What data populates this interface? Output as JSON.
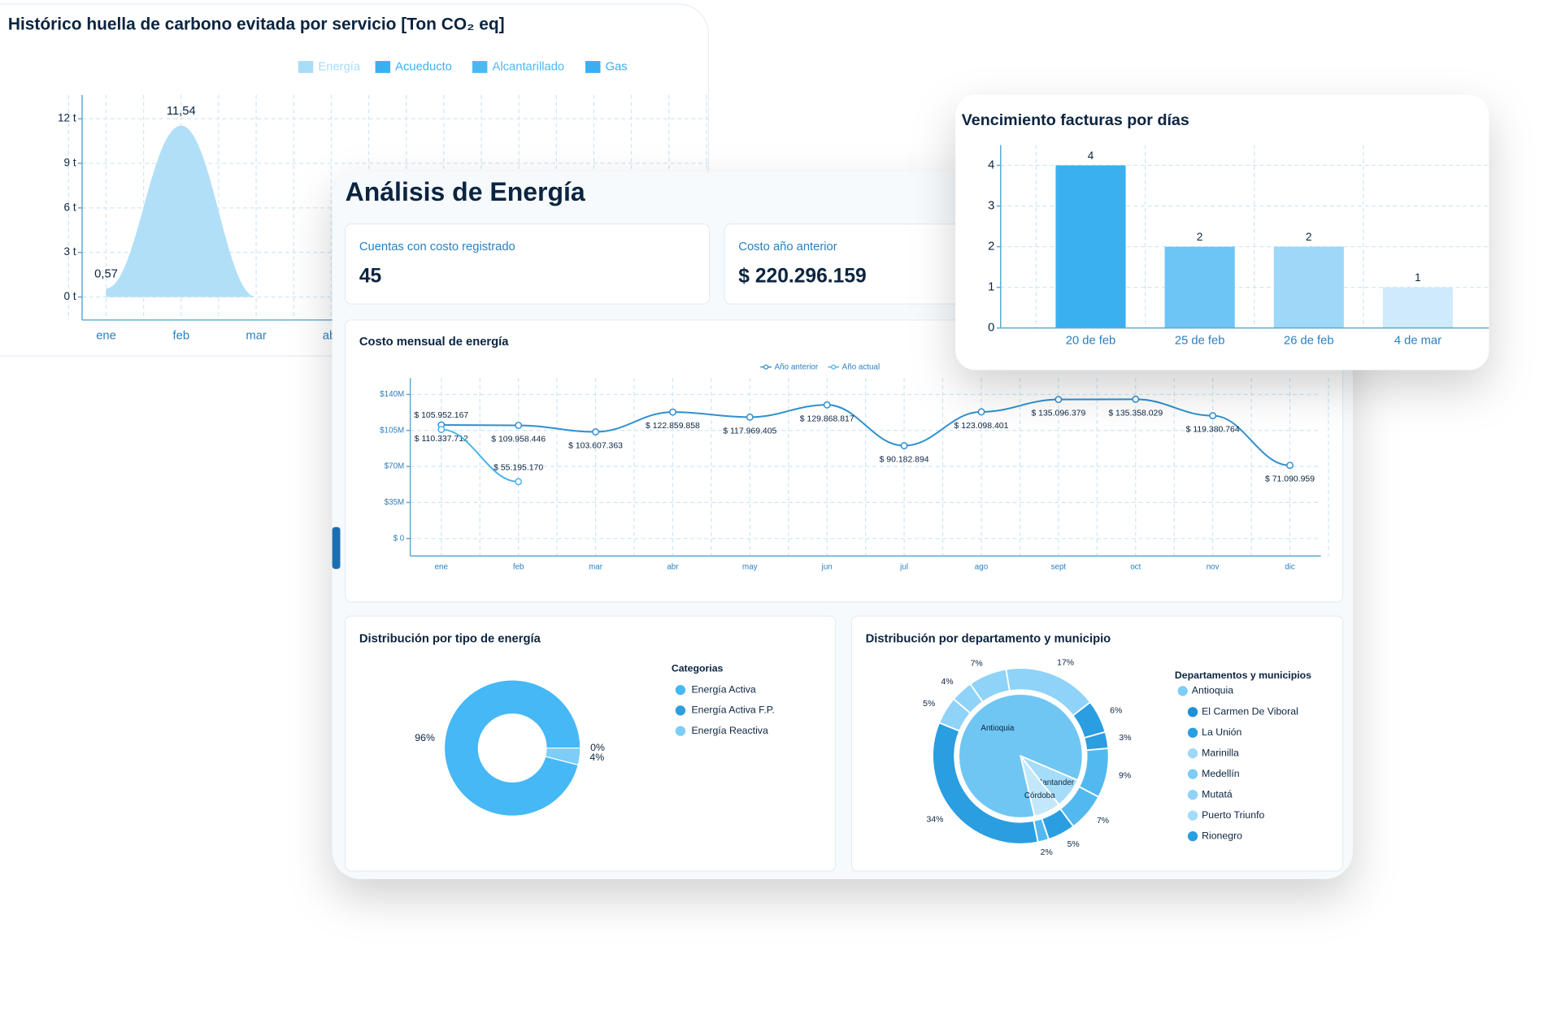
{
  "title": "Análisis de Energía",
  "cards": [
    {
      "label": "Cuentas con costo registrado",
      "value": 45
    },
    {
      "label": "Costo año anterior",
      "value": "$ 220.296.159"
    }
  ],
  "chart_data": [
    {
      "type": "area",
      "title": "Histórico huella de carbono evitada por servicio [Ton CO₂ eq]",
      "categories": [
        "ene",
        "feb",
        "mar",
        "abr"
      ],
      "series": [
        {
          "name": "Energía",
          "color": "#a9dcf7",
          "values": [
            0.57,
            11.54,
            0,
            0
          ],
          "value_labels": [
            "0,57",
            "11,54",
            null,
            null
          ]
        },
        {
          "name": "Acueducto",
          "color": "#3bb0f0"
        },
        {
          "name": "Alcantarillado",
          "color": "#4cb8f2"
        },
        {
          "name": "Gas",
          "color": "#3aaef0"
        }
      ],
      "ylim": [
        -1.55,
        13.6
      ],
      "yticks": [
        {
          "value": 0,
          "label": "0 t"
        },
        {
          "value": 3,
          "label": "3 t"
        },
        {
          "value": 6,
          "label": "6 t"
        },
        {
          "value": 9,
          "label": "9 t"
        },
        {
          "value": 12,
          "label": "12 t"
        }
      ],
      "grid": true,
      "legend": "top"
    },
    {
      "type": "bar",
      "title": "Vencimiento facturas por días",
      "categories": [
        "20 de feb",
        "25 de feb",
        "26 de feb",
        "4 de mar"
      ],
      "values": [
        4,
        2,
        2,
        1
      ],
      "colors": [
        "#3bb0f0",
        "#6cc5f5",
        "#9dd8f8",
        "#cfeafb"
      ],
      "ylim": [
        0,
        4.5
      ],
      "yticks": [
        0,
        1,
        2,
        3,
        4
      ],
      "grid": true
    },
    {
      "type": "line",
      "title": "Costo mensual de energía",
      "categories": [
        "ene",
        "feb",
        "mar",
        "abr",
        "may",
        "jun",
        "jul",
        "ago",
        "sept",
        "oct",
        "nov",
        "dic"
      ],
      "series": [
        {
          "name": "Año anterior",
          "color": "#2f8fd0",
          "values": [
            110337712,
            109958446,
            103607363,
            122859858,
            117969405,
            129868817,
            90182894,
            123098401,
            135096379,
            135358029,
            119380764,
            71090959
          ],
          "value_labels": [
            "$ 110.337.712",
            "$ 109.958.446",
            "$ 103.607.363",
            "$ 122.859.858",
            "$ 117.969.405",
            "$ 129.868.817",
            "$ 90.182.894",
            "$ 123.098.401",
            "$ 135.096.379",
            "$ 135.358.029",
            "$ 119.380.764",
            "$ 71.090.959"
          ]
        },
        {
          "name": "Año actual",
          "color": "#4ab3e8",
          "values": [
            105952167,
            55195170,
            null,
            null,
            null,
            null,
            null,
            null,
            null,
            null,
            null,
            null
          ],
          "value_labels": [
            "$ 105.952.167",
            "$ 55.195.170",
            null,
            null,
            null,
            null,
            null,
            null,
            null,
            null,
            null,
            null
          ]
        }
      ],
      "ylim": [
        -17000000,
        156000000
      ],
      "yticks": [
        {
          "value": 0,
          "label": "$ 0"
        },
        {
          "value": 35000000,
          "label": "$35M"
        },
        {
          "value": 70000000,
          "label": "$70M"
        },
        {
          "value": 105000000,
          "label": "$105M"
        },
        {
          "value": 140000000,
          "label": "$140M"
        }
      ],
      "grid": true,
      "legend": "top"
    },
    {
      "type": "donut",
      "title": "Distribución por tipo de energía",
      "legend_title": "Categorias",
      "categories": [
        "Energía Activa",
        "Energía Activa F.P.",
        "Energía Reactiva"
      ],
      "values": [
        96,
        0,
        4
      ],
      "value_labels": [
        "96%",
        "0%",
        "4%"
      ],
      "colors": [
        "#45b8f5",
        "#2a9ee0",
        "#7ccdf7"
      ]
    },
    {
      "type": "sunburst",
      "title": "Distribución por departamento y municipio",
      "legend_title": "Departamentos y municipios",
      "inner": {
        "labels": [
          "Antioquia",
          "Santander",
          "Córdoba"
        ],
        "values": [
          85,
          8,
          7
        ],
        "colors": [
          "#6fc6f3",
          "#a5dcf8",
          "#c4e8fb"
        ]
      },
      "outer": {
        "values": [
          7,
          17,
          6,
          3,
          9,
          7,
          5,
          2,
          34,
          5,
          4
        ],
        "value_labels": [
          "7%",
          "17%",
          "6%",
          "3%",
          "9%",
          "7%",
          "5%",
          "2%",
          "34%",
          "5%",
          "4%"
        ],
        "colors": [
          "#8fd3f8",
          "#8fd3f8",
          "#2a9ee0",
          "#2a9ee0",
          "#52b9f0",
          "#52b9f0",
          "#2a9ee0",
          "#52b9f0",
          "#2a9ee0",
          "#8fd3f8",
          "#8fd3f8"
        ]
      },
      "legend": [
        {
          "name": "Antioquia",
          "color": "#7ccdf7",
          "level": 0
        },
        {
          "name": "El Carmen De Viboral",
          "color": "#1f8fd6",
          "level": 1
        },
        {
          "name": "La Unión",
          "color": "#2a9ee0",
          "level": 1
        },
        {
          "name": "Marinilla",
          "color": "#9dd8f8",
          "level": 1
        },
        {
          "name": "Medellín",
          "color": "#7ccdf7",
          "level": 1
        },
        {
          "name": "Mutatá",
          "color": "#8fd2f7",
          "level": 1
        },
        {
          "name": "Puerto Triunfo",
          "color": "#a3dbf8",
          "level": 1
        },
        {
          "name": "Rionegro",
          "color": "#2a9ee0",
          "level": 1
        }
      ]
    }
  ]
}
